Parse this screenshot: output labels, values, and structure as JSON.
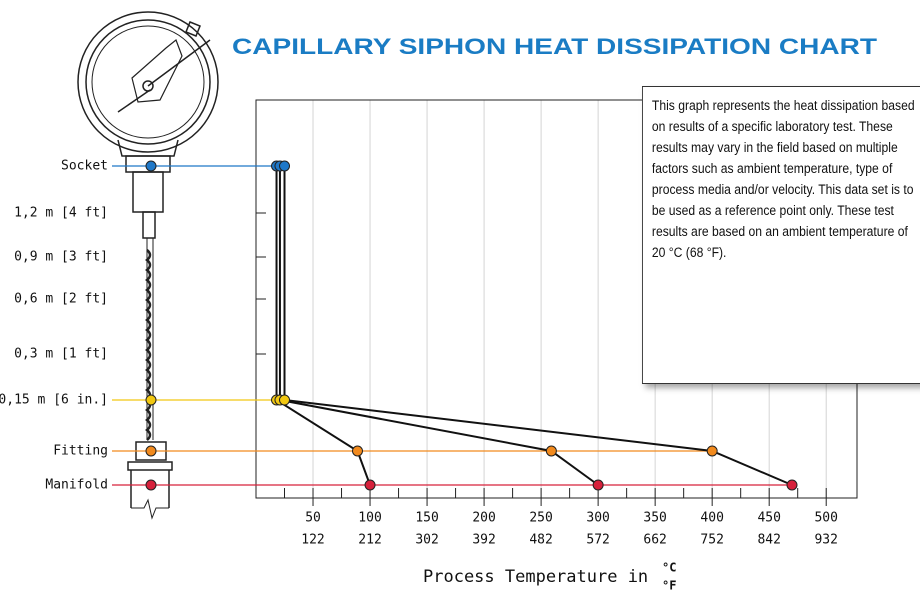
{
  "chart_data": {
    "type": "line",
    "title": "CAPILLARY SIPHON HEAT DISSIPATION CHART",
    "x_label": "Process Temperature in",
    "x_units": [
      "°C",
      "°F"
    ],
    "note": "This graph represents the heat dissipation based on results of a specific laboratory test. These results may vary in the field based on multiple factors such as ambient temperature, type of process media and/or velocity. This data set is to be used as a reference point only. These test results are based on an ambient temperature of 20 °C (68 °F).",
    "levels": [
      "Socket",
      "0,15 m [6 in.]",
      "Fitting",
      "Manifold"
    ],
    "level_colors": [
      "#1f78c8",
      "#f2c811",
      "#f28a1d",
      "#d7203b"
    ],
    "length_marks": [
      "1,2 m [4 ft]",
      "0,9 m [3 ft]",
      "0,6 m [2 ft]",
      "0,3 m [1 ft]"
    ],
    "series": [
      {
        "color": "#111111",
        "values": [
          18,
          18,
          89,
          100
        ]
      },
      {
        "color": "#111111",
        "values": [
          21,
          21,
          259,
          300
        ]
      },
      {
        "color": "#111111",
        "values": [
          25,
          25,
          400,
          470
        ]
      }
    ],
    "xlim": [
      0,
      527
    ],
    "xticks": [
      50,
      100,
      150,
      200,
      250,
      300,
      350,
      400,
      450,
      500
    ],
    "xticks_f": [
      122,
      212,
      302,
      392,
      482,
      572,
      662,
      752,
      842,
      932
    ],
    "xminor_ticks": [
      25,
      75,
      125,
      175,
      225,
      275,
      325,
      375,
      425,
      475
    ],
    "grid": true
  }
}
